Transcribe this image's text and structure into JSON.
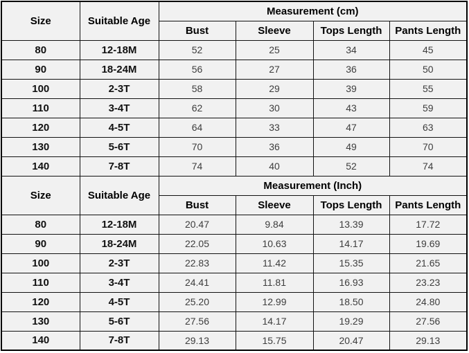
{
  "colors": {
    "border": "#000000",
    "inner_border": "#111111",
    "cell_background": "#f1f1f1",
    "page_background": "#ffffff",
    "header_text": "#000000",
    "value_text": "#3d3d3d"
  },
  "chart_data": [
    {
      "type": "table",
      "title": "Measurement (cm)",
      "columns": [
        "Size",
        "Suitable Age",
        "Bust",
        "Sleeve",
        "Tops Length",
        "Pants Length"
      ],
      "rows": [
        [
          "80",
          "12-18M",
          "52",
          "25",
          "34",
          "45"
        ],
        [
          "90",
          "18-24M",
          "56",
          "27",
          "36",
          "50"
        ],
        [
          "100",
          "2-3T",
          "58",
          "29",
          "39",
          "55"
        ],
        [
          "110",
          "3-4T",
          "62",
          "30",
          "43",
          "59"
        ],
        [
          "120",
          "4-5T",
          "64",
          "33",
          "47",
          "63"
        ],
        [
          "130",
          "5-6T",
          "70",
          "36",
          "49",
          "70"
        ],
        [
          "140",
          "7-8T",
          "74",
          "40",
          "52",
          "74"
        ]
      ]
    },
    {
      "type": "table",
      "title": "Measurement (Inch)",
      "columns": [
        "Size",
        "Suitable Age",
        "Bust",
        "Sleeve",
        "Tops Length",
        "Pants Length"
      ],
      "rows": [
        [
          "80",
          "12-18M",
          "20.47",
          "9.84",
          "13.39",
          "17.72"
        ],
        [
          "90",
          "18-24M",
          "22.05",
          "10.63",
          "14.17",
          "19.69"
        ],
        [
          "100",
          "2-3T",
          "22.83",
          "11.42",
          "15.35",
          "21.65"
        ],
        [
          "110",
          "3-4T",
          "24.41",
          "11.81",
          "16.93",
          "23.23"
        ],
        [
          "120",
          "4-5T",
          "25.20",
          "12.99",
          "18.50",
          "24.80"
        ],
        [
          "130",
          "5-6T",
          "27.56",
          "14.17",
          "19.29",
          "27.56"
        ],
        [
          "140",
          "7-8T",
          "29.13",
          "15.75",
          "20.47",
          "29.13"
        ]
      ]
    }
  ]
}
